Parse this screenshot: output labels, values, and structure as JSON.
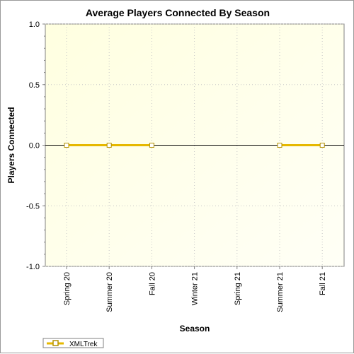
{
  "chart_data": {
    "type": "line",
    "title": "Average Players Connected By Season",
    "xlabel": "Season",
    "ylabel": "Players Connected",
    "categories": [
      "Spring 20",
      "Summer 20",
      "Fall 20",
      "Winter 21",
      "Spring 21",
      "Summer 21",
      "Fall 21"
    ],
    "series": [
      {
        "name": "XMLTrek",
        "values": [
          0,
          0,
          0,
          null,
          null,
          0,
          0
        ],
        "color": "#e6b800"
      }
    ],
    "ylim": [
      -1.0,
      1.0
    ],
    "yticks": [
      "-1.0",
      "-0.5",
      "0.0",
      "0.5",
      "1.0"
    ],
    "grid": true,
    "legend": "bottom-left",
    "background_gradient": [
      "#ffffe0",
      "#ffffff"
    ]
  }
}
